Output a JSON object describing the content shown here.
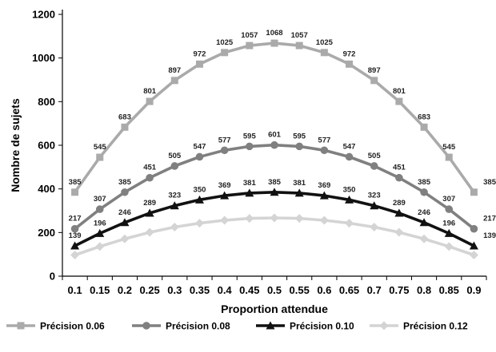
{
  "chart_data": {
    "type": "line",
    "title": "",
    "xlabel": "Proportion attendue",
    "ylabel": "Nombre de sujets",
    "x": [
      "0.1",
      "0.15",
      "0.2",
      "0.25",
      "0.3",
      "0.35",
      "0.4",
      "0.45",
      "0.5",
      "0.55",
      "0.6",
      "0.65",
      "0.7",
      "0.75",
      "0.8",
      "0.85",
      "0.9"
    ],
    "ylim": [
      0,
      1200
    ],
    "yticks": [
      "0",
      "200",
      "400",
      "600",
      "800",
      "1000",
      "1200"
    ],
    "grid": false,
    "legend_position": "bottom",
    "series": [
      {
        "name": "Précision 0.06",
        "color": "#aaaaaa",
        "marker": "square",
        "values": [
          385,
          545,
          683,
          801,
          897,
          972,
          1025,
          1057,
          1068,
          1057,
          1025,
          972,
          897,
          801,
          683,
          545,
          385
        ]
      },
      {
        "name": "Précision 0.08",
        "color": "#808080",
        "marker": "circle",
        "values": [
          217,
          307,
          385,
          451,
          505,
          547,
          577,
          595,
          601,
          595,
          577,
          547,
          505,
          451,
          385,
          307,
          217
        ]
      },
      {
        "name": "Précision 0.10",
        "color": "#111111",
        "marker": "triangle",
        "values": [
          139,
          196,
          246,
          289,
          323,
          350,
          369,
          381,
          385,
          381,
          369,
          350,
          323,
          289,
          246,
          196,
          139
        ]
      },
      {
        "name": "Précision 0.12",
        "color": "#d4d4d4",
        "marker": "diamond",
        "values": [
          97,
          136,
          171,
          201,
          225,
          243,
          256,
          265,
          267,
          265,
          256,
          243,
          225,
          201,
          171,
          136,
          97
        ]
      }
    ],
    "labeled_series": [
      0,
      1,
      2
    ]
  }
}
